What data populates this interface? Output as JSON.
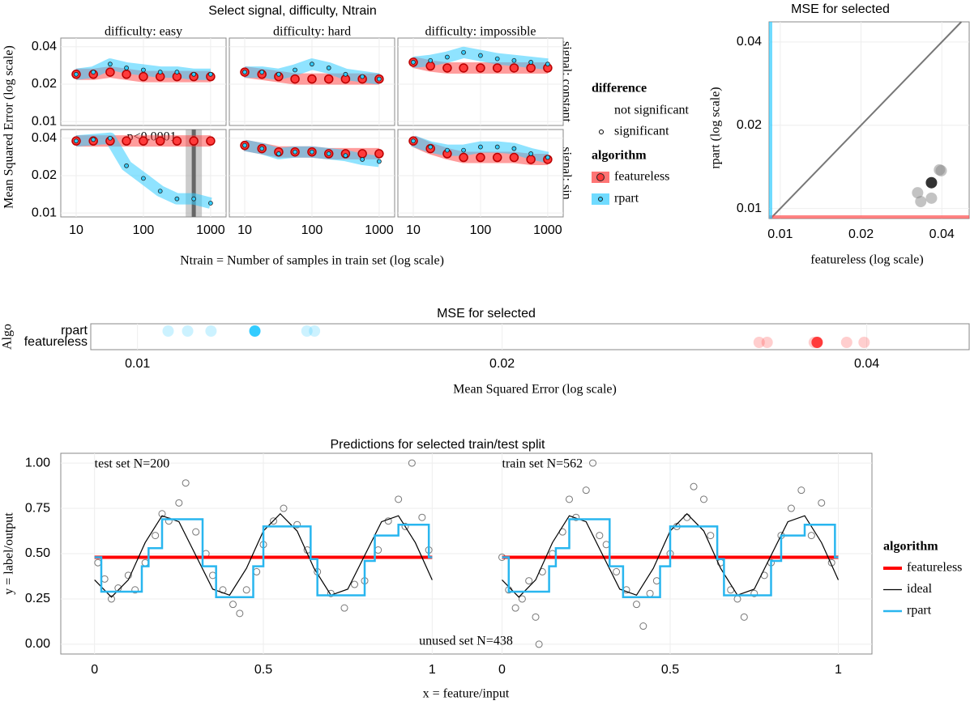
{
  "chart_data": [
    {
      "type": "facet-line",
      "title": "Select signal, difficulty, Ntrain",
      "xlabel": "Ntrain = Number of samples in train set (log scale)",
      "ylabel": "Mean Squared Error (log scale)",
      "columns": [
        "difficulty: easy",
        "difficulty: hard",
        "difficulty: impossible"
      ],
      "rows": [
        "signal: constant",
        "signal: sin"
      ],
      "log_x": true,
      "log_y": true,
      "x": [
        10,
        18,
        32,
        56,
        100,
        178,
        316,
        562,
        1000
      ],
      "xlim": [
        5.9,
        1700
      ],
      "xticks": [
        10,
        100,
        1000
      ],
      "ylim": [
        0.0093,
        0.047
      ],
      "yticks": [
        0.01,
        0.02,
        0.04
      ],
      "series": [
        {
          "name": "featureless",
          "color": "#ff3b3b"
        },
        {
          "name": "rpart",
          "color": "#33ccff"
        }
      ],
      "panels": [
        [
          [
            [
              0.024,
              0.024,
              0.025,
              0.024,
              0.023,
              0.023,
              0.023,
              0.023,
              0.023
            ],
            [
              0.024,
              0.025,
              0.029,
              0.027,
              0.026,
              0.025,
              0.025,
              0.024,
              0.024
            ]
          ],
          [
            [
              0.025,
              0.024,
              0.023,
              0.022,
              0.022,
              0.022,
              0.022,
              0.022,
              0.022
            ],
            [
              0.025,
              0.025,
              0.024,
              0.026,
              0.029,
              0.027,
              0.024,
              0.023,
              0.022
            ]
          ],
          [
            [
              0.03,
              0.028,
              0.027,
              0.027,
              0.027,
              0.027,
              0.027,
              0.027,
              0.027
            ],
            [
              0.03,
              0.031,
              0.033,
              0.036,
              0.034,
              0.032,
              0.031,
              0.03,
              0.029
            ]
          ]
        ],
        [
          [
            [
              0.038,
              0.038,
              0.038,
              0.038,
              0.038,
              0.038,
              0.038,
              0.038,
              0.038
            ],
            [
              0.038,
              0.039,
              0.04,
              0.024,
              0.019,
              0.015,
              0.013,
              0.013,
              0.012
            ]
          ],
          [
            [
              0.035,
              0.033,
              0.031,
              0.031,
              0.031,
              0.03,
              0.03,
              0.03,
              0.03
            ],
            [
              0.035,
              0.033,
              0.03,
              0.031,
              0.031,
              0.03,
              0.029,
              0.027,
              0.026
            ]
          ],
          [
            [
              0.038,
              0.033,
              0.03,
              0.028,
              0.028,
              0.028,
              0.028,
              0.027,
              0.027
            ],
            [
              0.038,
              0.034,
              0.032,
              0.032,
              0.034,
              0.034,
              0.033,
              0.03,
              0.028
            ]
          ]
        ]
      ],
      "selected_x": 562,
      "annotation": "p<0.0001",
      "legend": {
        "difference_title": "difference",
        "difference": [
          "not significant",
          "significant"
        ],
        "algorithm_title": "algorithm"
      }
    },
    {
      "type": "scatter",
      "title": "MSE for selected",
      "xlabel": "featureless (log scale)",
      "ylabel": "rpart (log scale)",
      "log_x": true,
      "log_y": true,
      "x": [
        0.0366,
        0.0392,
        0.0398,
        0.0325,
        0.0334,
        0.0366
      ],
      "values": [
        0.0124,
        0.0138,
        0.0137,
        0.0114,
        0.0106,
        0.0109
      ],
      "selected": 0,
      "color": "#888888",
      "selected_color": "#333333",
      "xlim": [
        0.00908,
        0.0506
      ],
      "xticks": [
        0.01,
        0.02,
        0.04
      ],
      "ylim": [
        0.0092,
        0.0473
      ],
      "yticks": [
        0.01,
        0.02,
        0.04
      ]
    },
    {
      "type": "strip",
      "title": "MSE for selected",
      "xlabel": "Mean Squared Error (log scale)",
      "ylabel": "Algo",
      "log_x": true,
      "categories": [
        "rpart",
        "featureless"
      ],
      "values": [
        [
          0.0106,
          0.011,
          0.0115,
          0.0125,
          0.0138,
          0.014
        ],
        [
          0.0326,
          0.0331,
          0.0362,
          0.0364,
          0.0385,
          0.0398
        ]
      ],
      "colors": [
        "#33ccff",
        "#ff3b3b"
      ],
      "selected": 3,
      "xlim": [
        0.00915,
        0.0486
      ],
      "xticks": [
        0.01,
        0.02,
        0.04
      ]
    },
    {
      "type": "predictions",
      "title": "Predictions for selected train/test split",
      "xlabel": "x = feature/input",
      "ylabel": "y = label/output",
      "xlim": [
        -0.1,
        1.1
      ],
      "xticks": [
        0,
        0.5,
        1
      ],
      "ylim": [
        -0.054,
        1.054
      ],
      "yticks": [
        {
          "value": 0,
          "label": "0.00"
        },
        {
          "value": 0.25,
          "label": "0.25"
        },
        {
          "value": 0.5,
          "label": "0.50"
        },
        {
          "value": 0.75,
          "label": "0.75"
        },
        {
          "value": 1,
          "label": "1.00"
        }
      ],
      "unused_annotation": "unused set N=438",
      "panels": [
        {
          "annotation": "test set N=200",
          "x": [
            0.01,
            0.03,
            0.05,
            0.07,
            0.1,
            0.12,
            0.15,
            0.18,
            0.2,
            0.22,
            0.25,
            0.27,
            0.3,
            0.33,
            0.35,
            0.38,
            0.41,
            0.43,
            0.45,
            0.48,
            0.5,
            0.53,
            0.56,
            0.6,
            0.63,
            0.66,
            0.7,
            0.74,
            0.77,
            0.8,
            0.84,
            0.87,
            0.9,
            0.92,
            0.94,
            0.97,
            0.99
          ],
          "values": [
            0.45,
            0.36,
            0.25,
            0.31,
            0.38,
            0.3,
            0.45,
            0.6,
            0.72,
            0.68,
            0.78,
            0.89,
            0.62,
            0.5,
            0.38,
            0.3,
            0.22,
            0.17,
            0.3,
            0.4,
            0.55,
            0.68,
            0.75,
            0.66,
            0.52,
            0.4,
            0.28,
            0.2,
            0.33,
            0.35,
            0.52,
            0.68,
            0.8,
            0.65,
            1.0,
            0.7,
            0.52
          ]
        },
        {
          "annotation": "train set N=562",
          "x": [
            0,
            0.02,
            0.04,
            0.06,
            0.08,
            0.1,
            0.11,
            0.12,
            0.15,
            0.18,
            0.2,
            0.22,
            0.25,
            0.27,
            0.29,
            0.31,
            0.34,
            0.37,
            0.4,
            0.42,
            0.44,
            0.46,
            0.5,
            0.52,
            0.55,
            0.57,
            0.6,
            0.62,
            0.65,
            0.68,
            0.7,
            0.72,
            0.75,
            0.78,
            0.8,
            0.83,
            0.86,
            0.89,
            0.92,
            0.95,
            0.98
          ],
          "values": [
            0.48,
            0.3,
            0.2,
            0.25,
            0.35,
            0.15,
            0.0,
            0.4,
            0.5,
            0.62,
            0.8,
            0.7,
            0.85,
            1.0,
            0.6,
            0.55,
            0.4,
            0.3,
            0.22,
            0.1,
            0.28,
            0.35,
            0.5,
            0.65,
            0.7,
            0.87,
            0.8,
            0.6,
            0.45,
            0.3,
            0.25,
            0.15,
            0.28,
            0.38,
            0.45,
            0.6,
            0.75,
            0.85,
            0.6,
            0.78,
            0.45
          ]
        }
      ],
      "legend_title": "algorithm",
      "series": [
        {
          "name": "featureless",
          "color": "#ff0000",
          "x": [
            0,
            1
          ],
          "values": [
            0.48,
            0.48
          ]
        },
        {
          "name": "ideal",
          "color": "#000000",
          "x": [
            0,
            0.05,
            0.1,
            0.15,
            0.2,
            0.25,
            0.3,
            0.35,
            0.4,
            0.45,
            0.5,
            0.55,
            0.6,
            0.65,
            0.7,
            0.75,
            0.8,
            0.85,
            0.9,
            0.95,
            1
          ],
          "values": [
            0.355,
            0.26,
            0.355,
            0.561,
            0.709,
            0.676,
            0.49,
            0.304,
            0.271,
            0.419,
            0.625,
            0.72,
            0.625,
            0.419,
            0.271,
            0.304,
            0.49,
            0.676,
            0.709,
            0.561,
            0.355
          ]
        },
        {
          "name": "rpart",
          "color": "#29b6ef",
          "step": true,
          "x": [
            0,
            0.02,
            0.14,
            0.16,
            0.2,
            0.32,
            0.36,
            0.47,
            0.5,
            0.64,
            0.66,
            0.8,
            0.83,
            0.9,
            0.99,
            1
          ],
          "values": [
            0.48,
            0.29,
            0.43,
            0.53,
            0.69,
            0.43,
            0.26,
            0.43,
            0.65,
            0.47,
            0.27,
            0.46,
            0.6,
            0.66,
            0.48,
            0.48
          ]
        }
      ]
    }
  ]
}
